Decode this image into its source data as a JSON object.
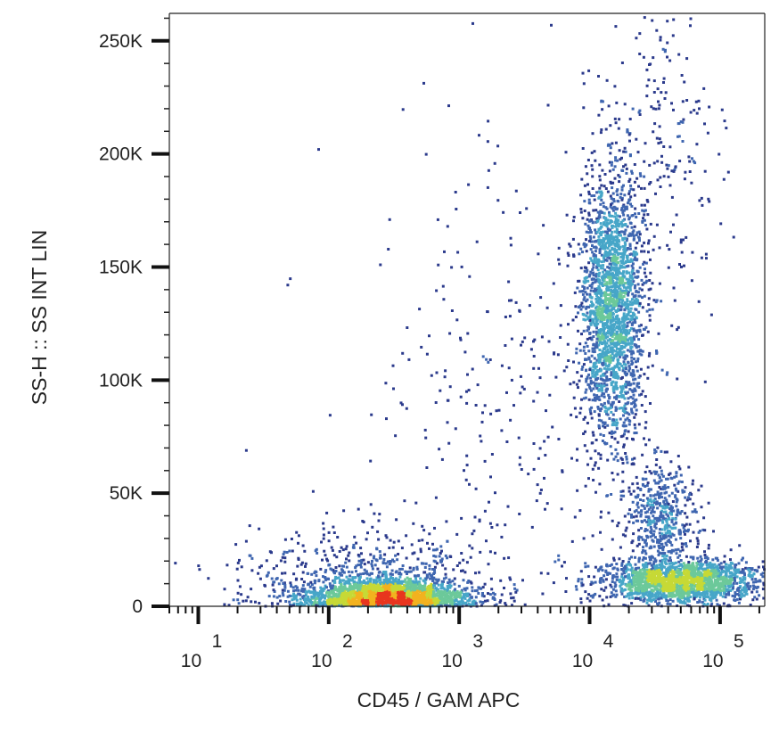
{
  "chart_data": {
    "type": "scatter",
    "subtype": "flow-cytometry density dot plot",
    "xlabel": "CD45  / GAM APC",
    "ylabel": "SS-H :: SS INT LIN",
    "x_scale": "log",
    "xlim": [
      6,
      220000
    ],
    "y_scale": "linear",
    "ylim": [
      0,
      262144
    ],
    "x_ticks": [
      {
        "value": 10,
        "base": "10",
        "exp": "1"
      },
      {
        "value": 100,
        "base": "10",
        "exp": "2"
      },
      {
        "value": 1000,
        "base": "10",
        "exp": "3"
      },
      {
        "value": 10000,
        "base": "10",
        "exp": "4"
      },
      {
        "value": 100000,
        "base": "10",
        "exp": "5"
      }
    ],
    "y_ticks": [
      {
        "value": 0,
        "label": "0"
      },
      {
        "value": 50000,
        "label": "50K"
      },
      {
        "value": 100000,
        "label": "100K"
      },
      {
        "value": 150000,
        "label": "150K"
      },
      {
        "value": 200000,
        "label": "200K"
      },
      {
        "value": 250000,
        "label": "250K"
      }
    ],
    "density_colors": [
      "#2b3a8c",
      "#3f66b0",
      "#47a6c8",
      "#6cc99a",
      "#c6d936",
      "#f2b21f",
      "#e8361e"
    ],
    "grid": false,
    "legend": "none",
    "populations": [
      {
        "x_center": 300,
        "x_spread_decades": 0.3,
        "y_center": 4000,
        "y_spread": 4000,
        "relative_count": 2400,
        "peak": "red"
      },
      {
        "x_center": 180,
        "x_spread_decades": 0.45,
        "y_center": 12000,
        "y_spread": 12000,
        "relative_count": 700,
        "peak": "blue"
      },
      {
        "x_center": 15000,
        "x_spread_decades": 0.12,
        "y_center": 132000,
        "y_spread": 28000,
        "relative_count": 2200,
        "peak": "yellow-green"
      },
      {
        "x_center": 50000,
        "x_spread_decades": 0.3,
        "y_center": 11000,
        "y_spread": 4500,
        "relative_count": 1900,
        "peak": "red"
      },
      {
        "x_center": 35000,
        "x_spread_decades": 0.15,
        "y_center": 38000,
        "y_spread": 12000,
        "relative_count": 500,
        "peak": "blue"
      },
      {
        "x_center": 3000,
        "x_spread_decades": 0.6,
        "y_center": 90000,
        "y_spread": 60000,
        "relative_count": 350,
        "peak": "blue"
      },
      {
        "x_center": 30000,
        "x_spread_decades": 0.25,
        "y_center": 200000,
        "y_spread": 35000,
        "relative_count": 250,
        "peak": "blue"
      }
    ]
  }
}
